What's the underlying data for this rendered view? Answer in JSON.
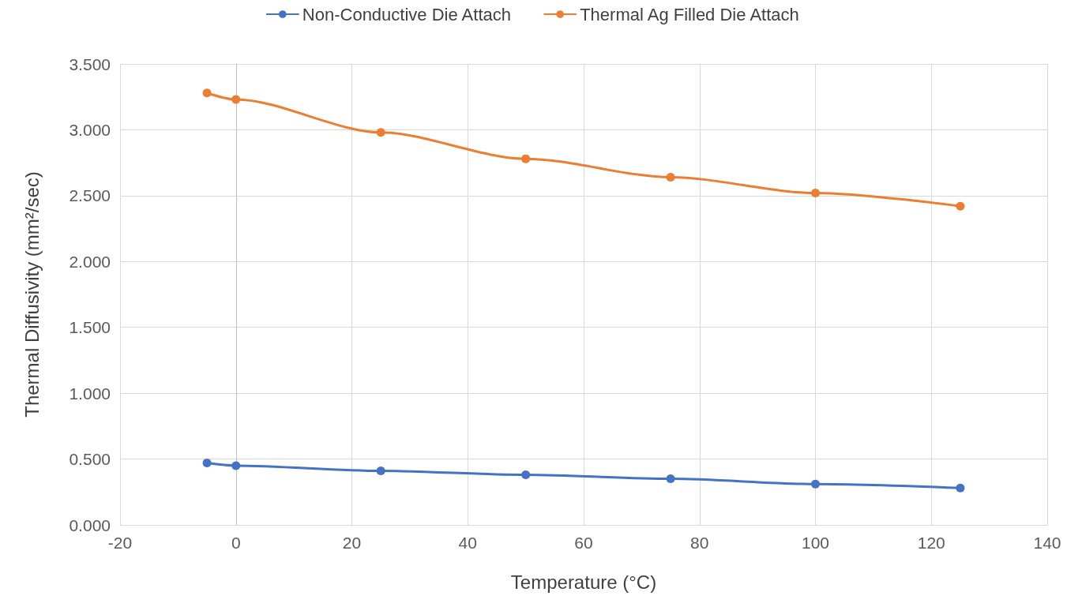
{
  "chart_data": {
    "type": "line",
    "xlabel": "Temperature (°C)",
    "ylabel": "Thermal Diffusivity (mm²/sec)",
    "x": [
      -5,
      0,
      25,
      50,
      75,
      100,
      125
    ],
    "series": [
      {
        "name": "Non-Conductive Die Attach",
        "color": "#4472c4",
        "values": [
          0.47,
          0.45,
          0.41,
          0.38,
          0.35,
          0.31,
          0.28
        ]
      },
      {
        "name": "Thermal Ag Filled Die Attach",
        "color": "#ed7d31",
        "values": [
          3.28,
          3.23,
          2.98,
          2.78,
          2.64,
          2.52,
          2.42
        ]
      }
    ],
    "xlim": [
      -20,
      140
    ],
    "xticks": [
      -20,
      0,
      20,
      40,
      60,
      80,
      100,
      120,
      140
    ],
    "ylim": [
      0,
      3.5
    ],
    "yticks": [
      {
        "value": 0,
        "label": "0.000"
      },
      {
        "value": 0.5,
        "label": "0.500"
      },
      {
        "value": 1,
        "label": "1.000"
      },
      {
        "value": 1.5,
        "label": "1.500"
      },
      {
        "value": 2,
        "label": "2.000"
      },
      {
        "value": 2.5,
        "label": "2.500"
      },
      {
        "value": 3,
        "label": "3.000"
      },
      {
        "value": 3.5,
        "label": "3.500"
      }
    ],
    "grid": true,
    "legend": "top",
    "marker": "circle",
    "line_style": "solid"
  }
}
